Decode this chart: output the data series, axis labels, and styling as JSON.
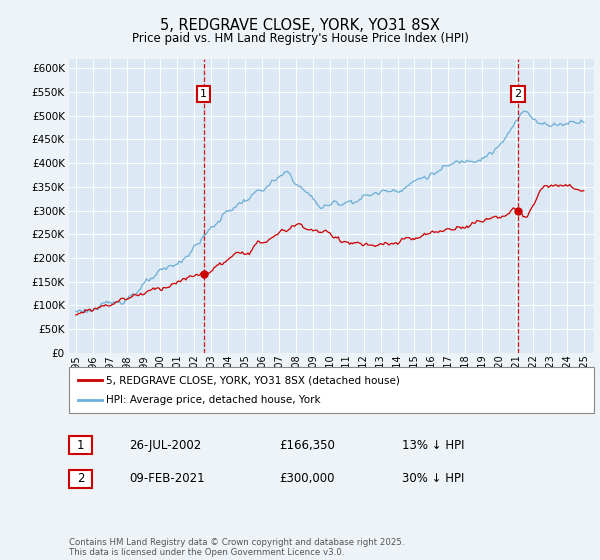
{
  "title": "5, REDGRAVE CLOSE, YORK, YO31 8SX",
  "subtitle": "Price paid vs. HM Land Registry's House Price Index (HPI)",
  "ylim": [
    0,
    600000
  ],
  "yticks": [
    0,
    50000,
    100000,
    150000,
    200000,
    250000,
    300000,
    350000,
    400000,
    450000,
    500000,
    550000,
    600000
  ],
  "xtick_years": [
    1995,
    1996,
    1997,
    1998,
    1999,
    2000,
    2001,
    2002,
    2003,
    2004,
    2005,
    2006,
    2007,
    2008,
    2009,
    2010,
    2011,
    2012,
    2013,
    2014,
    2015,
    2016,
    2017,
    2018,
    2019,
    2020,
    2021,
    2022,
    2023,
    2024,
    2025
  ],
  "sale1_x": 2002.55,
  "sale1_price": 166350,
  "sale1_date": "26-JUL-2002",
  "sale1_pct": "13% ↓ HPI",
  "sale2_x": 2021.1,
  "sale2_price": 300000,
  "sale2_date": "09-FEB-2021",
  "sale2_pct": "30% ↓ HPI",
  "legend_sold": "5, REDGRAVE CLOSE, YORK, YO31 8SX (detached house)",
  "legend_hpi": "HPI: Average price, detached house, York",
  "footer": "Contains HM Land Registry data © Crown copyright and database right 2025.\nThis data is licensed under the Open Government Licence v3.0.",
  "color_hpi": "#6baed6",
  "color_sold": "#cc0000",
  "color_bg": "#eef3f8",
  "color_plot_bg": "#dce8f4"
}
